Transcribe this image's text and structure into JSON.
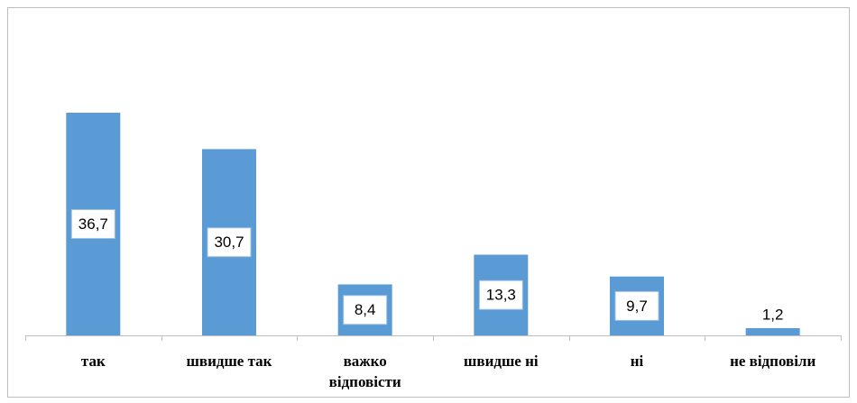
{
  "chart_data": {
    "type": "bar",
    "categories": [
      "так",
      "швидше так",
      "важко\nвідповісти",
      "швидше ні",
      "ні",
      "не відповіли"
    ],
    "values": [
      36.7,
      30.7,
      8.4,
      13.3,
      9.7,
      1.2
    ],
    "value_labels": [
      "36,7",
      "30,7",
      "8,4",
      "13,3",
      "9,7",
      "1,2"
    ],
    "color": "#5b9bd5",
    "ylim": [
      0,
      45
    ]
  }
}
